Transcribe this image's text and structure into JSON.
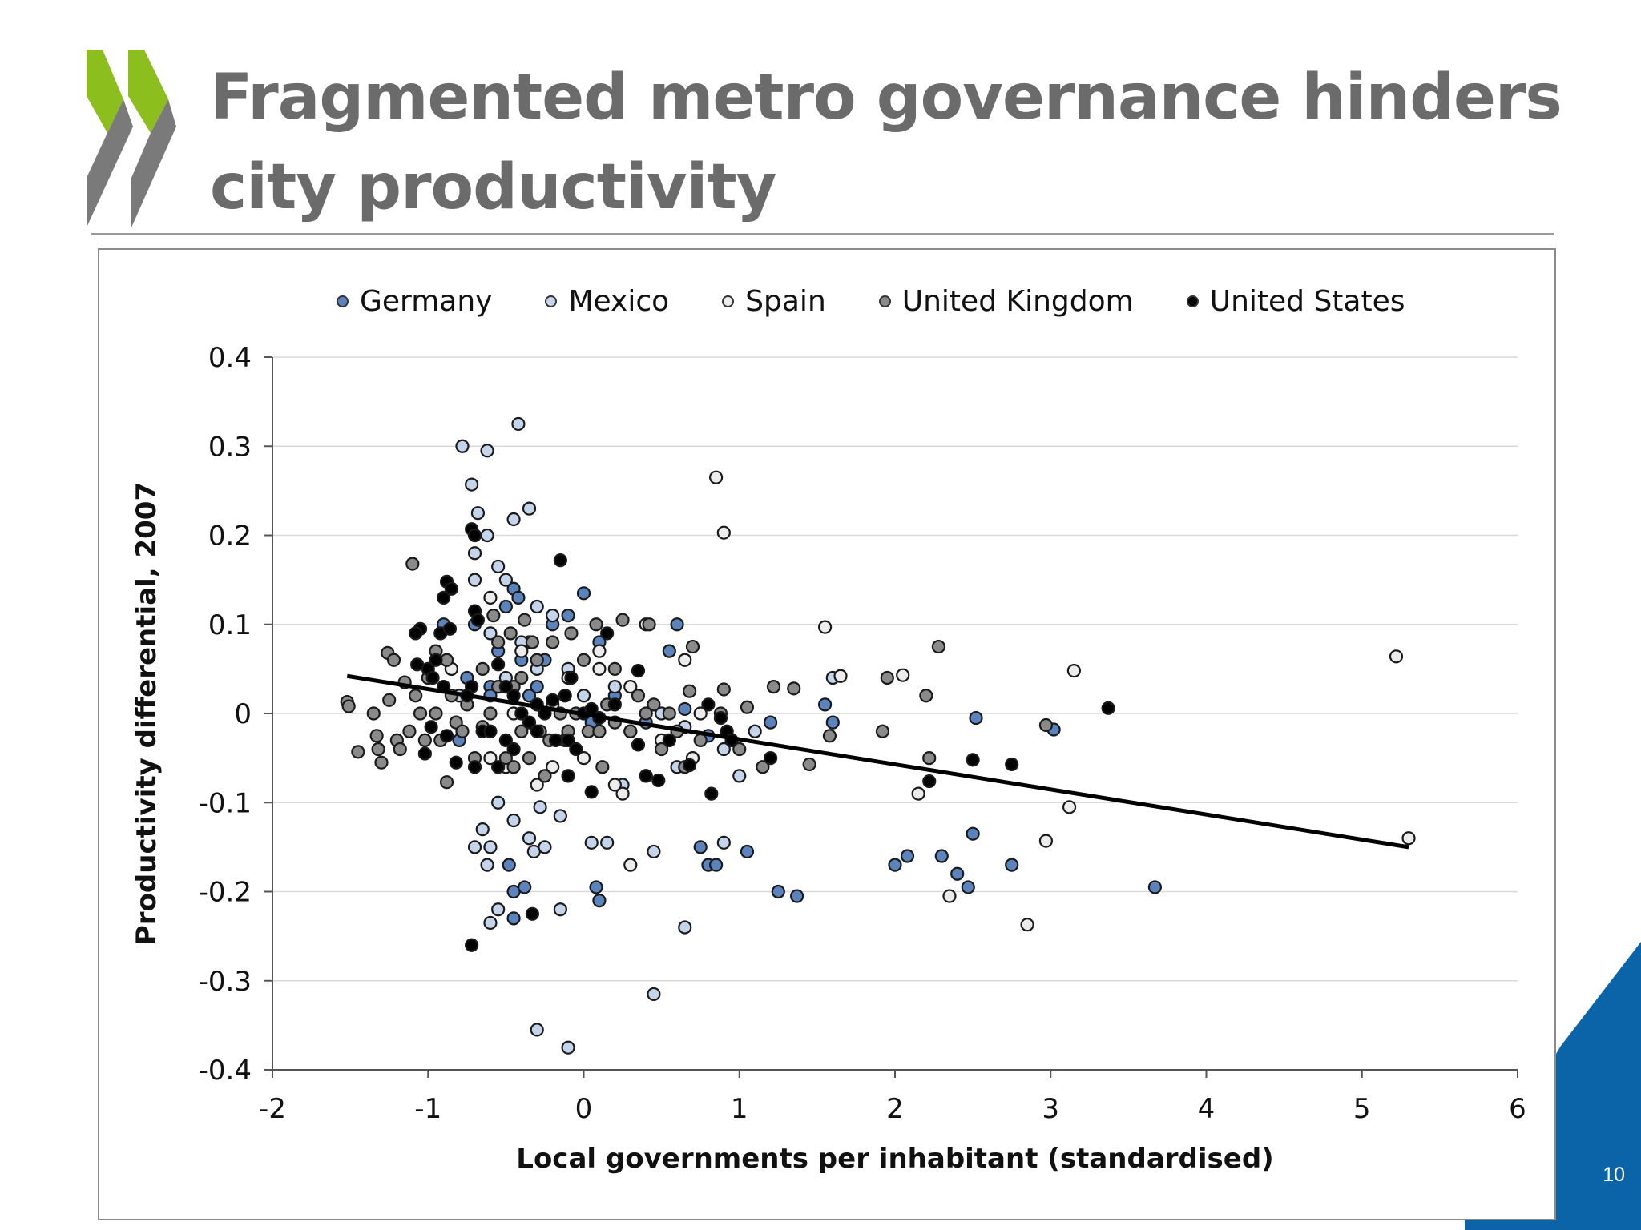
{
  "slide": {
    "title": "Fragmented metro governance hinders city productivity",
    "page_number": "10",
    "colors": {
      "title": "#6b6b6b",
      "logo_green": "#8cbe1e",
      "logo_gray": "#7a7a7a",
      "corner_blue": "#0b63a8"
    }
  },
  "chart_data": {
    "type": "scatter",
    "title": "",
    "xlabel": "Local governments per inhabitant (standardised)",
    "ylabel": "Productivity differential, 2007",
    "xlim": [
      -2,
      6
    ],
    "ylim": [
      -0.4,
      0.4
    ],
    "x_ticks": [
      "-2",
      "-1",
      "0",
      "1",
      "2",
      "3",
      "4",
      "5",
      "6"
    ],
    "y_ticks": [
      "-0.4",
      "-0.3",
      "-0.2",
      "-0.1",
      "0",
      "0.1",
      "0.2",
      "0.3",
      "0.4"
    ],
    "grid": true,
    "legend_position": "top",
    "series": [
      {
        "name": "Germany",
        "color": "#5b84bf",
        "points": [
          [
            -0.9,
            0.1
          ],
          [
            -0.85,
            0.05
          ],
          [
            -0.75,
            0.04
          ],
          [
            -0.7,
            0.1
          ],
          [
            -0.6,
            0.03
          ],
          [
            -0.55,
            0.07
          ],
          [
            -0.5,
            0.12
          ],
          [
            -0.45,
            0.14
          ],
          [
            -0.42,
            0.13
          ],
          [
            -0.4,
            0.06
          ],
          [
            -0.35,
            0.08
          ],
          [
            -0.3,
            0.03
          ],
          [
            -0.25,
            0.06
          ],
          [
            -0.2,
            0.1
          ],
          [
            -0.1,
            0.11
          ],
          [
            0,
            0.135
          ],
          [
            0.1,
            0.08
          ],
          [
            0.2,
            0.02
          ],
          [
            0.3,
            -0.02
          ],
          [
            0.4,
            -0.01
          ],
          [
            0.55,
            0.07
          ],
          [
            0.6,
            0.1
          ],
          [
            0.65,
            0.005
          ],
          [
            -0.8,
            -0.03
          ],
          [
            -0.65,
            -0.02
          ],
          [
            -0.48,
            -0.17
          ],
          [
            -0.45,
            -0.2
          ],
          [
            -0.38,
            -0.195
          ],
          [
            -0.45,
            -0.23
          ],
          [
            0.08,
            -0.195
          ],
          [
            0.1,
            -0.21
          ],
          [
            0.75,
            -0.15
          ],
          [
            0.8,
            -0.17
          ],
          [
            0.85,
            -0.17
          ],
          [
            0.8,
            -0.025
          ],
          [
            1.05,
            -0.155
          ],
          [
            1.2,
            -0.01
          ],
          [
            1.25,
            -0.2
          ],
          [
            1.37,
            -0.205
          ],
          [
            1.55,
            0.01
          ],
          [
            1.6,
            -0.01
          ],
          [
            2.0,
            -0.17
          ],
          [
            2.08,
            -0.16
          ],
          [
            2.3,
            -0.16
          ],
          [
            2.4,
            -0.18
          ],
          [
            2.47,
            -0.195
          ],
          [
            2.5,
            -0.135
          ],
          [
            2.52,
            -0.005
          ],
          [
            2.75,
            -0.17
          ],
          [
            3.02,
            -0.018
          ],
          [
            3.67,
            -0.195
          ],
          [
            -0.6,
            0.02
          ],
          [
            -0.35,
            0.02
          ],
          [
            0.05,
            -0.01
          ]
        ]
      },
      {
        "name": "Mexico",
        "color": "#c4d4ea",
        "points": [
          [
            -0.78,
            0.3
          ],
          [
            -0.62,
            0.295
          ],
          [
            -0.42,
            0.325
          ],
          [
            -0.72,
            0.257
          ],
          [
            -0.68,
            0.225
          ],
          [
            -0.45,
            0.218
          ],
          [
            -0.35,
            0.23
          ],
          [
            -0.7,
            0.18
          ],
          [
            -0.62,
            0.2
          ],
          [
            -0.55,
            0.165
          ],
          [
            -0.7,
            0.15
          ],
          [
            -0.5,
            0.15
          ],
          [
            -0.3,
            0.12
          ],
          [
            -0.2,
            0.11
          ],
          [
            -0.6,
            0.09
          ],
          [
            -0.4,
            0.08
          ],
          [
            -0.3,
            0.05
          ],
          [
            -0.1,
            0.05
          ],
          [
            0,
            0.02
          ],
          [
            0.1,
            -0.02
          ],
          [
            0.2,
            0.03
          ],
          [
            0.25,
            -0.08
          ],
          [
            0.4,
            -0.07
          ],
          [
            -0.7,
            -0.15
          ],
          [
            -0.65,
            -0.13
          ],
          [
            -0.6,
            -0.15
          ],
          [
            -0.62,
            -0.17
          ],
          [
            -0.55,
            -0.1
          ],
          [
            -0.45,
            -0.12
          ],
          [
            -0.35,
            -0.14
          ],
          [
            -0.32,
            -0.155
          ],
          [
            -0.25,
            -0.15
          ],
          [
            -0.55,
            -0.22
          ],
          [
            -0.6,
            -0.235
          ],
          [
            -0.15,
            -0.22
          ],
          [
            0.05,
            -0.145
          ],
          [
            0.15,
            -0.145
          ],
          [
            -0.15,
            -0.115
          ],
          [
            -0.28,
            -0.105
          ],
          [
            0.45,
            -0.155
          ],
          [
            0.65,
            -0.24
          ],
          [
            0.9,
            -0.145
          ],
          [
            0.45,
            -0.315
          ],
          [
            -0.3,
            -0.355
          ],
          [
            -0.1,
            -0.375
          ],
          [
            0.6,
            -0.06
          ],
          [
            1.0,
            -0.07
          ],
          [
            1.1,
            -0.02
          ],
          [
            1.6,
            0.04
          ],
          [
            0.9,
            -0.04
          ],
          [
            0.65,
            -0.015
          ],
          [
            -0.5,
            0.04
          ],
          [
            -0.8,
            0.02
          ],
          [
            0.5,
            0.0
          ]
        ]
      },
      {
        "name": "Spain",
        "color": "#ececec",
        "points": [
          [
            0.85,
            0.265
          ],
          [
            0.9,
            0.203
          ],
          [
            1.55,
            0.097
          ],
          [
            1.65,
            0.042
          ],
          [
            2.05,
            0.043
          ],
          [
            2.15,
            -0.09
          ],
          [
            2.35,
            -0.205
          ],
          [
            2.85,
            -0.237
          ],
          [
            2.97,
            -0.143
          ],
          [
            3.12,
            -0.105
          ],
          [
            3.15,
            0.048
          ],
          [
            5.22,
            0.064
          ],
          [
            5.3,
            -0.14
          ],
          [
            0.65,
            0.06
          ],
          [
            0.3,
            0.03
          ],
          [
            0.3,
            -0.17
          ],
          [
            0.25,
            -0.09
          ],
          [
            0.2,
            -0.08
          ],
          [
            0,
            -0.05
          ],
          [
            -0.1,
            0.04
          ],
          [
            0.1,
            0.07
          ],
          [
            -0.3,
            -0.08
          ],
          [
            -0.2,
            -0.06
          ],
          [
            -0.5,
            -0.06
          ],
          [
            -0.6,
            -0.05
          ],
          [
            0.7,
            -0.05
          ],
          [
            0.5,
            -0.03
          ],
          [
            -0.85,
            0.05
          ],
          [
            -0.4,
            0.07
          ],
          [
            -0.6,
            0.13
          ],
          [
            0.4,
            0.1
          ],
          [
            0.1,
            0.05
          ],
          [
            -0.45,
            0.0
          ],
          [
            0.75,
            0.0
          ],
          [
            -0.2,
            0.01
          ]
        ]
      },
      {
        "name": "United Kingdom",
        "color": "#8a8a8a",
        "points": [
          [
            -1.52,
            0.013
          ],
          [
            -1.51,
            0.008
          ],
          [
            -1.45,
            -0.043
          ],
          [
            -1.35,
            0.0
          ],
          [
            -1.33,
            -0.025
          ],
          [
            -1.32,
            -0.04
          ],
          [
            -1.3,
            -0.055
          ],
          [
            -1.26,
            0.068
          ],
          [
            -1.25,
            0.015
          ],
          [
            -1.22,
            0.06
          ],
          [
            -1.2,
            -0.03
          ],
          [
            -1.15,
            0.035
          ],
          [
            -1.12,
            -0.02
          ],
          [
            -1.1,
            0.168
          ],
          [
            -1.05,
            0.0
          ],
          [
            -1.02,
            -0.03
          ],
          [
            -1.0,
            0.04
          ],
          [
            -0.95,
            0.07
          ],
          [
            -0.92,
            -0.03
          ],
          [
            -0.88,
            -0.077
          ],
          [
            -0.85,
            0.02
          ],
          [
            -0.82,
            -0.01
          ],
          [
            -0.75,
            0.01
          ],
          [
            -0.7,
            -0.05
          ],
          [
            -0.65,
            0.05
          ],
          [
            -0.6,
            0.0
          ],
          [
            -0.58,
            0.11
          ],
          [
            -0.55,
            0.08
          ],
          [
            -0.5,
            -0.05
          ],
          [
            -0.47,
            0.09
          ],
          [
            -0.45,
            0.03
          ],
          [
            -0.4,
            -0.02
          ],
          [
            -0.38,
            0.105
          ],
          [
            -0.35,
            -0.05
          ],
          [
            -0.3,
            0.06
          ],
          [
            -0.28,
            -0.02
          ],
          [
            -0.25,
            -0.07
          ],
          [
            -0.2,
            0.08
          ],
          [
            -0.15,
            0.0
          ],
          [
            -0.12,
            -0.03
          ],
          [
            -0.08,
            0.09
          ],
          [
            -0.05,
            0.0
          ],
          [
            0.0,
            0.06
          ],
          [
            0.03,
            -0.02
          ],
          [
            0.08,
            0.1
          ],
          [
            0.12,
            -0.06
          ],
          [
            0.15,
            0.01
          ],
          [
            0.2,
            0.05
          ],
          [
            0.25,
            0.105
          ],
          [
            0.3,
            -0.02
          ],
          [
            0.35,
            0.02
          ],
          [
            0.42,
            0.1
          ],
          [
            0.45,
            0.01
          ],
          [
            0.5,
            -0.04
          ],
          [
            0.55,
            0.0
          ],
          [
            0.6,
            -0.02
          ],
          [
            0.65,
            -0.06
          ],
          [
            0.68,
            0.025
          ],
          [
            0.7,
            0.075
          ],
          [
            0.75,
            -0.03
          ],
          [
            0.88,
            0.0
          ],
          [
            0.9,
            0.027
          ],
          [
            0.95,
            -0.03
          ],
          [
            1.0,
            -0.04
          ],
          [
            1.05,
            0.007
          ],
          [
            1.15,
            -0.06
          ],
          [
            1.22,
            0.03
          ],
          [
            1.35,
            0.028
          ],
          [
            1.45,
            -0.057
          ],
          [
            1.58,
            -0.025
          ],
          [
            1.92,
            -0.02
          ],
          [
            1.95,
            0.04
          ],
          [
            2.2,
            0.02
          ],
          [
            2.22,
            -0.05
          ],
          [
            2.28,
            0.075
          ],
          [
            2.97,
            -0.013
          ],
          [
            -0.95,
            0.0
          ],
          [
            -0.88,
            0.06
          ],
          [
            -0.78,
            -0.02
          ],
          [
            -0.65,
            -0.015
          ],
          [
            -0.55,
            0.03
          ],
          [
            -0.45,
            -0.06
          ],
          [
            -0.4,
            0.04
          ],
          [
            -0.33,
            0.08
          ],
          [
            -0.22,
            -0.03
          ],
          [
            -0.1,
            -0.02
          ],
          [
            0.1,
            -0.02
          ],
          [
            0.2,
            -0.01
          ],
          [
            0.4,
            0.0
          ],
          [
            -1.08,
            0.02
          ],
          [
            -1.18,
            -0.04
          ]
        ]
      },
      {
        "name": "United States",
        "color": "#000000",
        "points": [
          [
            -0.72,
            0.207
          ],
          [
            -0.7,
            0.2
          ],
          [
            -0.15,
            0.172
          ],
          [
            -0.88,
            0.148
          ],
          [
            -0.85,
            0.14
          ],
          [
            -0.9,
            0.13
          ],
          [
            -0.7,
            0.115
          ],
          [
            -0.68,
            0.105
          ],
          [
            -0.92,
            0.09
          ],
          [
            -1.05,
            0.095
          ],
          [
            -1.08,
            0.09
          ],
          [
            -0.86,
            0.095
          ],
          [
            -0.95,
            0.06
          ],
          [
            -1.0,
            0.05
          ],
          [
            -1.07,
            0.055
          ],
          [
            -0.97,
            0.04
          ],
          [
            -0.9,
            0.03
          ],
          [
            -0.72,
            0.03
          ],
          [
            -0.75,
            0.02
          ],
          [
            -0.55,
            0.055
          ],
          [
            -0.5,
            0.03
          ],
          [
            -0.45,
            0.02
          ],
          [
            -0.4,
            0.0
          ],
          [
            -0.35,
            -0.01
          ],
          [
            -0.3,
            0.01
          ],
          [
            -0.25,
            0.0
          ],
          [
            -0.2,
            0.015
          ],
          [
            -0.18,
            -0.03
          ],
          [
            -0.1,
            -0.03
          ],
          [
            -0.08,
            0.04
          ],
          [
            0.0,
            0.0
          ],
          [
            0.05,
            0.005
          ],
          [
            0.1,
            -0.005
          ],
          [
            0.15,
            0.09
          ],
          [
            0.2,
            0.01
          ],
          [
            0.35,
            0.048
          ],
          [
            0.4,
            -0.07
          ],
          [
            0.48,
            -0.075
          ],
          [
            0.55,
            -0.03
          ],
          [
            0.68,
            -0.058
          ],
          [
            0.82,
            -0.09
          ],
          [
            0.88,
            -0.005
          ],
          [
            0.92,
            -0.02
          ],
          [
            0.95,
            -0.03
          ],
          [
            1.2,
            -0.05
          ],
          [
            -1.02,
            -0.045
          ],
          [
            -0.98,
            -0.015
          ],
          [
            -0.88,
            -0.025
          ],
          [
            -0.82,
            -0.055
          ],
          [
            -0.7,
            -0.06
          ],
          [
            -0.65,
            -0.02
          ],
          [
            -0.5,
            -0.03
          ],
          [
            -0.33,
            -0.225
          ],
          [
            -0.72,
            -0.26
          ],
          [
            0.05,
            -0.088
          ],
          [
            -0.1,
            -0.07
          ],
          [
            -0.05,
            -0.04
          ],
          [
            0.35,
            -0.035
          ],
          [
            2.5,
            -0.052
          ],
          [
            2.75,
            -0.057
          ],
          [
            2.22,
            -0.076
          ],
          [
            3.37,
            0.006
          ],
          [
            -0.6,
            -0.02
          ],
          [
            -0.45,
            -0.04
          ],
          [
            -0.3,
            -0.02
          ],
          [
            -0.12,
            0.02
          ],
          [
            0.8,
            0.01
          ],
          [
            -0.55,
            -0.06
          ]
        ]
      }
    ],
    "trend_line": {
      "x": [
        -1.52,
        5.3
      ],
      "y": [
        0.042,
        -0.15
      ]
    }
  }
}
